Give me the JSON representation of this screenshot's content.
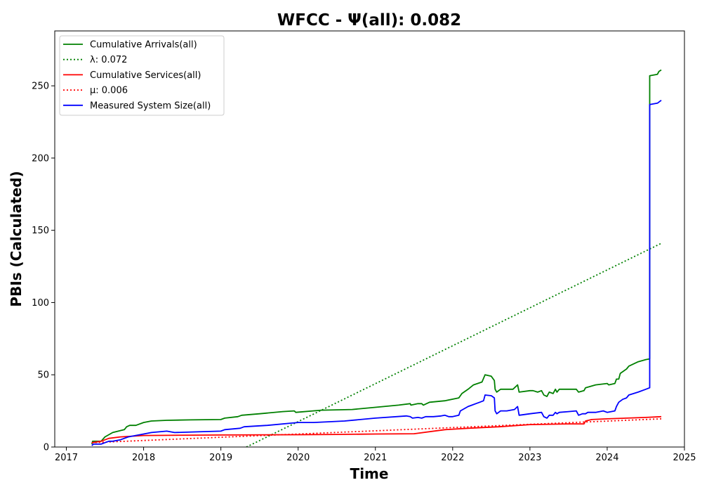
{
  "chart_data": {
    "type": "line",
    "title": "WFCC -  Ψ(all): 0.082",
    "xlabel": "Time",
    "ylabel": "PBIs (Calculated)",
    "xlim": [
      2016.85,
      2025.0
    ],
    "ylim": [
      0,
      288
    ],
    "xticks": [
      2017,
      2018,
      2019,
      2020,
      2021,
      2022,
      2023,
      2024,
      2025
    ],
    "xtick_labels": [
      "2017",
      "2018",
      "2019",
      "2020",
      "2021",
      "2022",
      "2023",
      "2024",
      "2025"
    ],
    "yticks": [
      0,
      50,
      100,
      150,
      200,
      250
    ],
    "ytick_labels": [
      "0",
      "50",
      "100",
      "150",
      "200",
      "250"
    ],
    "grid": false,
    "legend_position": "upper-left",
    "series": [
      {
        "name": "Cumulative Arrivals(all)",
        "color": "#008000",
        "style": "solid",
        "points": [
          [
            2017.33,
            2
          ],
          [
            2017.34,
            4
          ],
          [
            2017.45,
            4
          ],
          [
            2017.5,
            7
          ],
          [
            2017.6,
            10
          ],
          [
            2017.75,
            12
          ],
          [
            2017.78,
            14
          ],
          [
            2017.82,
            15
          ],
          [
            2017.9,
            15
          ],
          [
            2018.0,
            17
          ],
          [
            2018.1,
            18
          ],
          [
            2018.3,
            18.5
          ],
          [
            2018.6,
            18.8
          ],
          [
            2019.0,
            19
          ],
          [
            2019.05,
            20
          ],
          [
            2019.22,
            21
          ],
          [
            2019.27,
            22
          ],
          [
            2019.5,
            23
          ],
          [
            2019.8,
            24.5
          ],
          [
            2019.95,
            25
          ],
          [
            2019.97,
            24
          ],
          [
            2020.3,
            25.5
          ],
          [
            2020.7,
            26
          ],
          [
            2021.0,
            27.5
          ],
          [
            2021.3,
            29
          ],
          [
            2021.45,
            30
          ],
          [
            2021.46,
            29
          ],
          [
            2021.55,
            30
          ],
          [
            2021.6,
            30
          ],
          [
            2021.62,
            29
          ],
          [
            2021.7,
            31
          ],
          [
            2021.9,
            32
          ],
          [
            2022.08,
            34
          ],
          [
            2022.12,
            37
          ],
          [
            2022.2,
            40
          ],
          [
            2022.27,
            43
          ],
          [
            2022.38,
            45
          ],
          [
            2022.42,
            50
          ],
          [
            2022.5,
            49
          ],
          [
            2022.54,
            46
          ],
          [
            2022.55,
            40
          ],
          [
            2022.57,
            38
          ],
          [
            2022.62,
            40
          ],
          [
            2022.7,
            40
          ],
          [
            2022.78,
            40
          ],
          [
            2022.84,
            43
          ],
          [
            2022.86,
            38
          ],
          [
            2023.0,
            39
          ],
          [
            2023.04,
            39
          ],
          [
            2023.1,
            38
          ],
          [
            2023.15,
            39
          ],
          [
            2023.18,
            36
          ],
          [
            2023.22,
            35
          ],
          [
            2023.25,
            38
          ],
          [
            2023.3,
            37
          ],
          [
            2023.33,
            40
          ],
          [
            2023.35,
            38
          ],
          [
            2023.38,
            40
          ],
          [
            2023.5,
            40
          ],
          [
            2023.6,
            40
          ],
          [
            2023.63,
            38
          ],
          [
            2023.7,
            39
          ],
          [
            2023.72,
            41
          ],
          [
            2023.85,
            43
          ],
          [
            2024.0,
            44
          ],
          [
            2024.02,
            43
          ],
          [
            2024.1,
            44
          ],
          [
            2024.12,
            47
          ],
          [
            2024.15,
            47
          ],
          [
            2024.17,
            51
          ],
          [
            2024.25,
            54
          ],
          [
            2024.28,
            56
          ],
          [
            2024.4,
            59
          ],
          [
            2024.5,
            60.5
          ],
          [
            2024.55,
            61
          ],
          [
            2024.55,
            257
          ],
          [
            2024.65,
            258
          ],
          [
            2024.67,
            260
          ],
          [
            2024.7,
            261
          ]
        ]
      },
      {
        "name": "λ: 0.072",
        "color": "#008000",
        "style": "dotted",
        "points": [
          [
            2019.33,
            0
          ],
          [
            2024.7,
            141
          ]
        ]
      },
      {
        "name": "Cumulative Services(all)",
        "color": "#ff0000",
        "style": "solid",
        "points": [
          [
            2017.33,
            3
          ],
          [
            2017.45,
            4
          ],
          [
            2017.55,
            6
          ],
          [
            2017.7,
            7
          ],
          [
            2018.0,
            8
          ],
          [
            2019.0,
            8.3
          ],
          [
            2020.0,
            8.5
          ],
          [
            2020.5,
            8.7
          ],
          [
            2021.0,
            9
          ],
          [
            2021.5,
            9.2
          ],
          [
            2021.9,
            12
          ],
          [
            2022.2,
            13
          ],
          [
            2022.6,
            14
          ],
          [
            2023.0,
            15.5
          ],
          [
            2023.5,
            16
          ],
          [
            2023.7,
            16
          ],
          [
            2023.72,
            18
          ],
          [
            2023.8,
            19
          ],
          [
            2024.0,
            19.5
          ],
          [
            2024.5,
            20.5
          ],
          [
            2024.7,
            21
          ]
        ]
      },
      {
        "name": "μ: 0.006",
        "color": "#ff0000",
        "style": "dotted",
        "points": [
          [
            2017.33,
            3
          ],
          [
            2024.7,
            19.5
          ]
        ]
      },
      {
        "name": "Measured System Size(all)",
        "color": "#0000ff",
        "style": "solid",
        "points": [
          [
            2017.33,
            1
          ],
          [
            2017.35,
            2
          ],
          [
            2017.45,
            2
          ],
          [
            2017.5,
            3
          ],
          [
            2017.55,
            4
          ],
          [
            2017.6,
            4
          ],
          [
            2017.7,
            5
          ],
          [
            2017.8,
            7
          ],
          [
            2018.0,
            9
          ],
          [
            2018.1,
            10
          ],
          [
            2018.3,
            11
          ],
          [
            2018.4,
            10
          ],
          [
            2018.7,
            10.5
          ],
          [
            2019.0,
            11
          ],
          [
            2019.05,
            12
          ],
          [
            2019.25,
            13
          ],
          [
            2019.3,
            14
          ],
          [
            2019.6,
            15
          ],
          [
            2019.9,
            16.5
          ],
          [
            2020.0,
            17
          ],
          [
            2020.2,
            17
          ],
          [
            2020.6,
            18
          ],
          [
            2021.0,
            20
          ],
          [
            2021.4,
            21.5
          ],
          [
            2021.45,
            21
          ],
          [
            2021.48,
            20
          ],
          [
            2021.55,
            20.5
          ],
          [
            2021.6,
            20
          ],
          [
            2021.65,
            21
          ],
          [
            2021.75,
            21
          ],
          [
            2021.85,
            21.5
          ],
          [
            2021.9,
            22
          ],
          [
            2021.95,
            21
          ],
          [
            2022.0,
            21
          ],
          [
            2022.08,
            22
          ],
          [
            2022.1,
            25
          ],
          [
            2022.2,
            28
          ],
          [
            2022.25,
            29
          ],
          [
            2022.3,
            30
          ],
          [
            2022.35,
            31
          ],
          [
            2022.4,
            32
          ],
          [
            2022.42,
            36
          ],
          [
            2022.5,
            35.5
          ],
          [
            2022.54,
            34
          ],
          [
            2022.55,
            25
          ],
          [
            2022.57,
            23
          ],
          [
            2022.62,
            25
          ],
          [
            2022.7,
            25
          ],
          [
            2022.8,
            26
          ],
          [
            2022.84,
            28
          ],
          [
            2022.86,
            22
          ],
          [
            2023.0,
            23
          ],
          [
            2023.15,
            24
          ],
          [
            2023.18,
            21
          ],
          [
            2023.22,
            20
          ],
          [
            2023.25,
            22
          ],
          [
            2023.3,
            22
          ],
          [
            2023.33,
            24
          ],
          [
            2023.35,
            23
          ],
          [
            2023.38,
            24
          ],
          [
            2023.5,
            24.5
          ],
          [
            2023.6,
            25
          ],
          [
            2023.63,
            22
          ],
          [
            2023.68,
            23
          ],
          [
            2023.72,
            23
          ],
          [
            2023.75,
            24
          ],
          [
            2023.85,
            24
          ],
          [
            2023.95,
            25
          ],
          [
            2024.0,
            24
          ],
          [
            2024.1,
            25
          ],
          [
            2024.12,
            28
          ],
          [
            2024.15,
            31
          ],
          [
            2024.2,
            33
          ],
          [
            2024.25,
            34
          ],
          [
            2024.28,
            36
          ],
          [
            2024.4,
            38
          ],
          [
            2024.5,
            40
          ],
          [
            2024.55,
            41
          ],
          [
            2024.55,
            237
          ],
          [
            2024.65,
            238
          ],
          [
            2024.7,
            240
          ]
        ]
      }
    ]
  }
}
